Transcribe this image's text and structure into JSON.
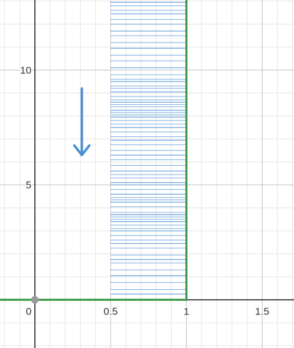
{
  "chart_data": {
    "type": "line",
    "xlim": [
      -0.23,
      1.71
    ],
    "ylim": [
      -2.1,
      13.05
    ],
    "grid": true,
    "minor_grid_x_step": 0.1,
    "minor_grid_y_step": 1,
    "major_grid_x_step": 0.5,
    "major_grid_y_step": 5,
    "x_ticks": [
      {
        "value": 0,
        "label": "0"
      },
      {
        "value": 0.5,
        "label": "0.5"
      },
      {
        "value": 1,
        "label": "1"
      },
      {
        "value": 1.5,
        "label": "1.5"
      }
    ],
    "y_ticks": [
      {
        "value": 5,
        "label": "5"
      },
      {
        "value": 10,
        "label": "10"
      }
    ],
    "series": [
      {
        "kind": "polyline",
        "color": "#3d9a48",
        "points": [
          [
            -0.23,
            0
          ],
          [
            1,
            0
          ],
          [
            1,
            13.05
          ]
        ]
      }
    ],
    "point": {
      "x": 0,
      "y": 0,
      "color": "#9a9a9a"
    },
    "hatch_region": {
      "x_range": [
        0.5,
        1
      ],
      "color": "#4a8fd6",
      "boundary_color": "#cfd6df",
      "y_levels": [
        0.25,
        0.45,
        0.75,
        1.05,
        1.3,
        1.6,
        1.75,
        1.95,
        2.25,
        2.45,
        2.6,
        2.8,
        3.0,
        3.1,
        3.25,
        3.4,
        3.5,
        3.6,
        3.7,
        3.8,
        4.05,
        4.25,
        4.35,
        4.45,
        4.6,
        4.8,
        5.0,
        5.1,
        5.3,
        5.45,
        5.6,
        5.85,
        6.1,
        6.3,
        6.5,
        6.75,
        6.95,
        7.1,
        7.3,
        7.5,
        7.65,
        7.8,
        7.95,
        8.05,
        8.15,
        8.25,
        8.4,
        8.5,
        8.6,
        8.7,
        8.85,
        9.05,
        9.2,
        9.3,
        9.5,
        9.6,
        9.8,
        10.1,
        10.4,
        10.65,
        10.95,
        11.2,
        11.5,
        11.7,
        12.0,
        12.2,
        12.45,
        12.6,
        12.8,
        12.95
      ]
    },
    "arrow": {
      "color": "#4a8fd6",
      "x": 0.31,
      "y_start": 9.2,
      "y_end": 6.3,
      "direction": "down"
    }
  }
}
